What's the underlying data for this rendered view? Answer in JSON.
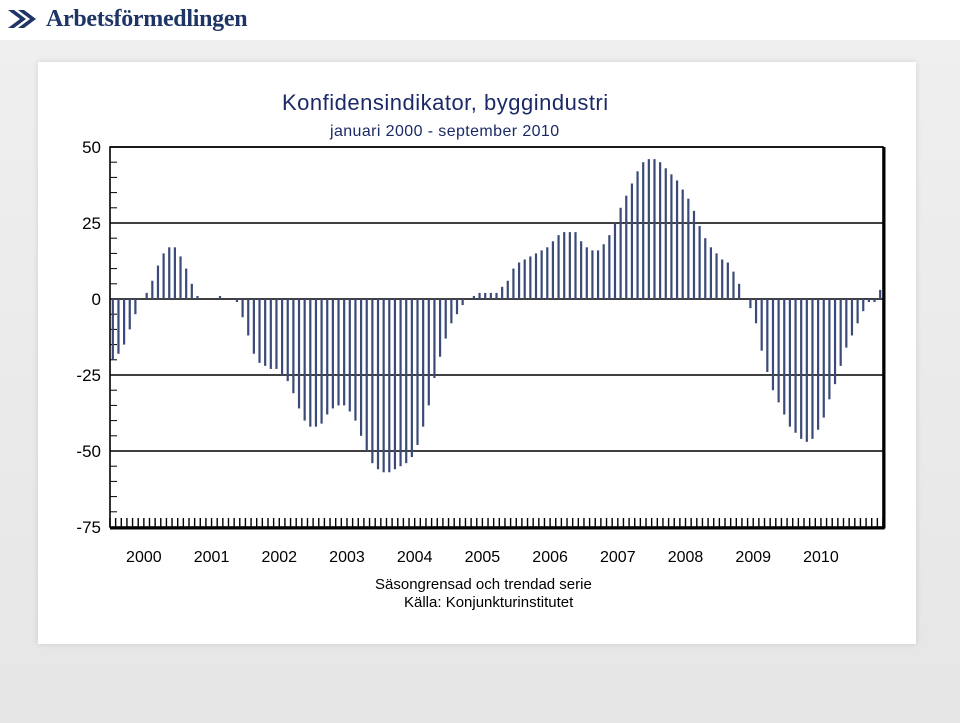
{
  "brand": {
    "name": "Arbetsförmedlingen",
    "color": "#1f3566"
  },
  "chart_data": {
    "type": "bar",
    "title": "Konfidensindikator, byggindustri",
    "subtitle": "januari 2000 - september 2010",
    "xlabel": "",
    "ylabel": "",
    "ylim": [
      -75,
      50
    ],
    "yticks": [
      "50",
      "25",
      "0",
      "-25",
      "-50",
      "-75"
    ],
    "year_labels": [
      "2000",
      "2001",
      "2002",
      "2003",
      "2004",
      "2005",
      "2006",
      "2007",
      "2008",
      "2009",
      "2010"
    ],
    "grid": true,
    "bar_color": "#3b4a78",
    "series": [
      {
        "values": [
          -20,
          -18,
          -15,
          -10,
          -5,
          0,
          2,
          6,
          11,
          15,
          17,
          17,
          14,
          10,
          5,
          1,
          0,
          0,
          0,
          1,
          0,
          0,
          -1,
          -6,
          -12,
          -18,
          -21,
          -22,
          -23,
          -23,
          -25,
          -27,
          -31,
          -36,
          -40,
          -42,
          -42,
          -41,
          -38,
          -36,
          -35,
          -35,
          -37,
          -40,
          -45,
          -50,
          -54,
          -56,
          -57,
          -57,
          -56,
          -55,
          -54,
          -52,
          -48,
          -42,
          -35,
          -26,
          -19,
          -13,
          -8,
          -5,
          -2,
          0,
          1,
          2,
          2,
          2,
          2,
          4,
          6,
          10,
          12,
          13,
          14,
          15,
          16,
          17,
          19,
          21,
          22,
          22,
          22,
          19,
          17,
          16,
          16,
          18,
          21,
          25,
          30,
          34,
          38,
          42,
          45,
          46,
          46,
          45,
          43,
          41,
          39,
          36,
          33,
          29,
          24,
          20,
          17,
          15,
          13,
          12,
          9,
          5,
          0,
          -3,
          -8,
          -17,
          -24,
          -30,
          -34,
          -38,
          -42,
          -44,
          -46,
          -47,
          -46,
          -43,
          -39,
          -33,
          -28,
          -22,
          -16,
          -12,
          -8,
          -4,
          -1,
          -1,
          3
        ]
      }
    ]
  },
  "notes": {
    "line1": "Säsongrensad och trendad serie",
    "line2": "Källa: Konjunkturinstitutet"
  }
}
